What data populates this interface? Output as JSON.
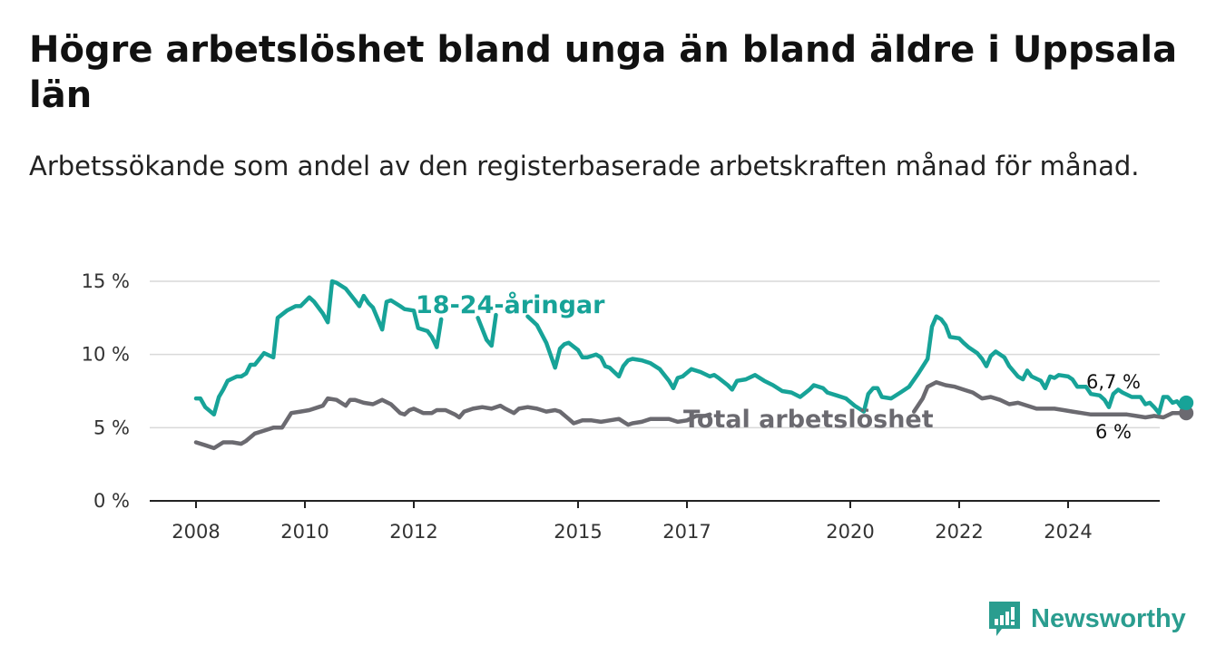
{
  "title": "Högre arbetslöshet bland unga än bland äldre i Uppsala län",
  "subtitle": "Arbetssökande som andel av den registerbaserade arbetskraften månad för månad.",
  "brand": {
    "name": "Newsworthy",
    "icon": "newsworthy-logo-icon",
    "color": "#2a9d8f"
  },
  "chart_data": {
    "type": "line",
    "title": "Högre arbetslöshet bland unga än bland äldre i Uppsala län",
    "subtitle": "Arbetssökande som andel av den registerbaserade arbetskraften månad för månad.",
    "xlabel": "",
    "ylabel": "",
    "x_ticks": [
      "2008",
      "2010",
      "2012",
      "2015",
      "2017",
      "2020",
      "2022",
      "2024"
    ],
    "x_tick_values": [
      2008,
      2010,
      2012,
      2015,
      2017,
      2020,
      2022,
      2024
    ],
    "xlim": [
      2007.2,
      2025.7
    ],
    "y_ticks": [
      "0 %",
      "5 %",
      "10 %",
      "15 %"
    ],
    "y_tick_values": [
      0,
      5,
      10,
      15
    ],
    "ylim": [
      0,
      15
    ],
    "grid": "horizontal",
    "series": [
      {
        "name": "18-24-åringar",
        "color": "#17a398",
        "end_label": "6,7 %",
        "points": [
          [
            2008.0,
            7.0
          ],
          [
            2008.08,
            7.0
          ],
          [
            2008.17,
            6.4
          ],
          [
            2008.33,
            5.9
          ],
          [
            2008.42,
            7.1
          ],
          [
            2008.5,
            7.6
          ],
          [
            2008.58,
            8.2
          ],
          [
            2008.75,
            8.5
          ],
          [
            2008.83,
            8.5
          ],
          [
            2008.92,
            8.7
          ],
          [
            2009.0,
            9.3
          ],
          [
            2009.08,
            9.3
          ],
          [
            2009.25,
            10.1
          ],
          [
            2009.42,
            9.8
          ],
          [
            2009.5,
            12.5
          ],
          [
            2009.67,
            13.0
          ],
          [
            2009.83,
            13.3
          ],
          [
            2009.92,
            13.3
          ],
          [
            2010.08,
            13.9
          ],
          [
            2010.17,
            13.6
          ],
          [
            2010.33,
            12.8
          ],
          [
            2010.42,
            12.2
          ],
          [
            2010.5,
            15.0
          ],
          [
            2010.58,
            14.9
          ],
          [
            2010.75,
            14.5
          ],
          [
            2010.92,
            13.7
          ],
          [
            2011.0,
            13.3
          ],
          [
            2011.08,
            14.0
          ],
          [
            2011.17,
            13.5
          ],
          [
            2011.25,
            13.2
          ],
          [
            2011.42,
            11.7
          ],
          [
            2011.5,
            13.6
          ],
          [
            2011.58,
            13.7
          ],
          [
            2011.75,
            13.3
          ],
          [
            2011.83,
            13.1
          ],
          [
            2012.0,
            13.0
          ],
          [
            2012.08,
            11.8
          ],
          [
            2012.25,
            11.6
          ],
          [
            2012.33,
            11.2
          ],
          [
            2012.42,
            10.5
          ],
          [
            2012.5,
            12.4
          ],
          [
            null,
            null
          ],
          [
            2013.17,
            12.5
          ],
          [
            2013.33,
            11.0
          ],
          [
            2013.42,
            10.6
          ],
          [
            2013.5,
            12.7
          ],
          [
            null,
            null
          ],
          [
            2014.08,
            12.6
          ],
          [
            2014.25,
            12.0
          ],
          [
            2014.42,
            10.8
          ],
          [
            2014.58,
            9.1
          ],
          [
            2014.67,
            10.4
          ],
          [
            2014.75,
            10.7
          ],
          [
            2014.83,
            10.8
          ],
          [
            2015.0,
            10.3
          ],
          [
            2015.08,
            9.8
          ],
          [
            2015.17,
            9.8
          ],
          [
            2015.33,
            10.0
          ],
          [
            2015.42,
            9.8
          ],
          [
            2015.5,
            9.2
          ],
          [
            2015.58,
            9.1
          ],
          [
            2015.75,
            8.5
          ],
          [
            2015.83,
            9.2
          ],
          [
            2015.92,
            9.6
          ],
          [
            2016.0,
            9.7
          ],
          [
            2016.17,
            9.6
          ],
          [
            2016.33,
            9.4
          ],
          [
            2016.5,
            9.0
          ],
          [
            2016.67,
            8.2
          ],
          [
            2016.75,
            7.7
          ],
          [
            2016.83,
            8.4
          ],
          [
            2016.92,
            8.5
          ],
          [
            2017.08,
            9.0
          ],
          [
            2017.25,
            8.8
          ],
          [
            2017.42,
            8.5
          ],
          [
            2017.5,
            8.6
          ],
          [
            2017.58,
            8.4
          ],
          [
            2017.75,
            7.9
          ],
          [
            2017.83,
            7.6
          ],
          [
            2017.92,
            8.2
          ],
          [
            2018.08,
            8.3
          ],
          [
            2018.25,
            8.6
          ],
          [
            2018.42,
            8.2
          ],
          [
            2018.58,
            7.9
          ],
          [
            2018.75,
            7.5
          ],
          [
            2018.92,
            7.4
          ],
          [
            2019.08,
            7.1
          ],
          [
            2019.25,
            7.6
          ],
          [
            2019.33,
            7.9
          ],
          [
            2019.5,
            7.7
          ],
          [
            2019.58,
            7.4
          ],
          [
            2019.75,
            7.2
          ],
          [
            2019.92,
            7.0
          ],
          [
            2020.08,
            6.5
          ],
          [
            2020.25,
            6.1
          ],
          [
            2020.33,
            7.3
          ],
          [
            2020.42,
            7.7
          ],
          [
            2020.5,
            7.7
          ],
          [
            2020.58,
            7.1
          ],
          [
            2020.75,
            7.0
          ],
          [
            2020.92,
            7.4
          ],
          [
            2021.08,
            7.8
          ],
          [
            2021.25,
            8.7
          ],
          [
            2021.42,
            9.7
          ],
          [
            2021.5,
            11.9
          ],
          [
            2021.58,
            12.6
          ],
          [
            2021.67,
            12.4
          ],
          [
            2021.75,
            12.0
          ],
          [
            2021.83,
            11.2
          ],
          [
            2022.0,
            11.1
          ],
          [
            2022.08,
            10.8
          ],
          [
            2022.17,
            10.5
          ],
          [
            2022.33,
            10.1
          ],
          [
            2022.42,
            9.7
          ],
          [
            2022.5,
            9.2
          ],
          [
            2022.58,
            9.9
          ],
          [
            2022.67,
            10.2
          ],
          [
            2022.83,
            9.8
          ],
          [
            2022.92,
            9.2
          ],
          [
            2023.08,
            8.5
          ],
          [
            2023.17,
            8.3
          ],
          [
            2023.25,
            8.9
          ],
          [
            2023.33,
            8.5
          ],
          [
            2023.5,
            8.2
          ],
          [
            2023.58,
            7.7
          ],
          [
            2023.67,
            8.5
          ],
          [
            2023.75,
            8.4
          ],
          [
            2023.83,
            8.6
          ],
          [
            2024.0,
            8.5
          ],
          [
            2024.08,
            8.3
          ],
          [
            2024.17,
            7.8
          ],
          [
            2024.33,
            7.8
          ],
          [
            2024.42,
            7.3
          ],
          [
            2024.58,
            7.2
          ],
          [
            2024.67,
            6.9
          ],
          [
            2024.75,
            6.4
          ],
          [
            2024.83,
            7.3
          ],
          [
            2024.92,
            7.6
          ],
          [
            2025.0,
            7.4
          ],
          [
            2025.17,
            7.1
          ],
          [
            2025.33,
            7.1
          ],
          [
            2025.42,
            6.6
          ],
          [
            2025.5,
            6.7
          ],
          [
            2025.58,
            6.4
          ],
          [
            2025.67,
            6.0
          ],
          [
            2025.75,
            7.1
          ],
          [
            2025.83,
            7.1
          ],
          [
            2025.92,
            6.7
          ],
          [
            2026.0,
            6.8
          ],
          [
            2026.08,
            6.4
          ],
          [
            2026.17,
            6.7
          ]
        ]
      },
      {
        "name": "Total arbetslöshet",
        "color": "#6b6a70",
        "end_label": "6 %",
        "points": [
          [
            2008.0,
            4.0
          ],
          [
            2008.17,
            3.8
          ],
          [
            2008.33,
            3.6
          ],
          [
            2008.5,
            4.0
          ],
          [
            2008.67,
            4.0
          ],
          [
            2008.83,
            3.9
          ],
          [
            2008.92,
            4.1
          ],
          [
            2009.08,
            4.6
          ],
          [
            2009.25,
            4.8
          ],
          [
            2009.42,
            5.0
          ],
          [
            2009.58,
            5.0
          ],
          [
            2009.75,
            6.0
          ],
          [
            2009.92,
            6.1
          ],
          [
            2010.08,
            6.2
          ],
          [
            2010.25,
            6.4
          ],
          [
            2010.33,
            6.5
          ],
          [
            2010.42,
            7.0
          ],
          [
            2010.58,
            6.9
          ],
          [
            2010.75,
            6.5
          ],
          [
            2010.83,
            6.9
          ],
          [
            2010.92,
            6.9
          ],
          [
            2011.08,
            6.7
          ],
          [
            2011.25,
            6.6
          ],
          [
            2011.42,
            6.9
          ],
          [
            2011.58,
            6.6
          ],
          [
            2011.75,
            6.0
          ],
          [
            2011.83,
            5.9
          ],
          [
            2011.92,
            6.2
          ],
          [
            2012.0,
            6.3
          ],
          [
            2012.17,
            6.0
          ],
          [
            2012.33,
            6.0
          ],
          [
            2012.42,
            6.2
          ],
          [
            2012.58,
            6.2
          ],
          [
            2012.75,
            5.9
          ],
          [
            2012.83,
            5.7
          ],
          [
            2012.92,
            6.1
          ],
          [
            2013.08,
            6.3
          ],
          [
            2013.25,
            6.4
          ],
          [
            2013.42,
            6.3
          ],
          [
            2013.58,
            6.5
          ],
          [
            2013.67,
            6.3
          ],
          [
            2013.83,
            6.0
          ],
          [
            2013.92,
            6.3
          ],
          [
            2014.08,
            6.4
          ],
          [
            2014.25,
            6.3
          ],
          [
            2014.42,
            6.1
          ],
          [
            2014.58,
            6.2
          ],
          [
            2014.67,
            6.1
          ],
          [
            2014.83,
            5.6
          ],
          [
            2014.92,
            5.3
          ],
          [
            2015.08,
            5.5
          ],
          [
            2015.25,
            5.5
          ],
          [
            2015.42,
            5.4
          ],
          [
            2015.58,
            5.5
          ],
          [
            2015.75,
            5.6
          ],
          [
            2015.92,
            5.2
          ],
          [
            2016.0,
            5.3
          ],
          [
            2016.17,
            5.4
          ],
          [
            2016.33,
            5.6
          ],
          [
            2016.5,
            5.6
          ],
          [
            2016.67,
            5.6
          ],
          [
            2016.83,
            5.4
          ],
          [
            2017.0,
            5.5
          ],
          [
            2017.17,
            5.8
          ],
          [
            2017.33,
            5.8
          ],
          [
            2017.42,
            5.9
          ],
          [
            null,
            null
          ],
          [
            2021.17,
            6.1
          ],
          [
            2021.33,
            7.0
          ],
          [
            2021.42,
            7.8
          ],
          [
            2021.58,
            8.1
          ],
          [
            2021.75,
            7.9
          ],
          [
            2021.92,
            7.8
          ],
          [
            2022.08,
            7.6
          ],
          [
            2022.25,
            7.4
          ],
          [
            2022.42,
            7.0
          ],
          [
            2022.58,
            7.1
          ],
          [
            2022.75,
            6.9
          ],
          [
            2022.92,
            6.6
          ],
          [
            2023.08,
            6.7
          ],
          [
            2023.25,
            6.5
          ],
          [
            2023.42,
            6.3
          ],
          [
            2023.58,
            6.3
          ],
          [
            2023.75,
            6.3
          ],
          [
            2023.92,
            6.2
          ],
          [
            2024.08,
            6.1
          ],
          [
            2024.25,
            6.0
          ],
          [
            2024.42,
            5.9
          ],
          [
            2024.58,
            5.9
          ],
          [
            2024.75,
            5.9
          ],
          [
            2024.92,
            5.9
          ],
          [
            2025.08,
            5.9
          ],
          [
            2025.25,
            5.8
          ],
          [
            2025.42,
            5.7
          ],
          [
            2025.58,
            5.8
          ],
          [
            2025.75,
            5.7
          ],
          [
            2025.92,
            6.0
          ],
          [
            2026.08,
            6.0
          ],
          [
            2026.17,
            6.0
          ]
        ]
      }
    ],
    "annotations": [
      "18-24-åringar",
      "Total arbetslöshet",
      "6,7 %",
      "6 %"
    ]
  }
}
